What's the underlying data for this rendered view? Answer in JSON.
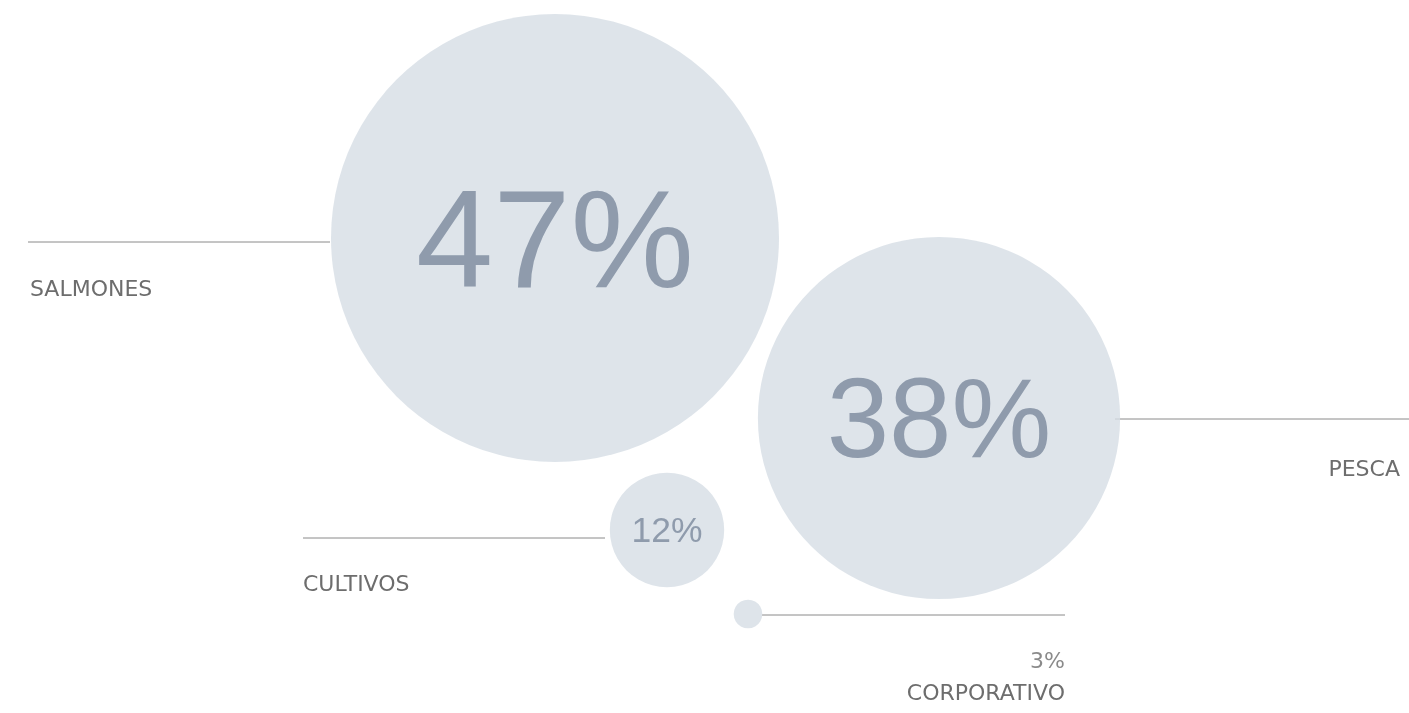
{
  "chart_data": {
    "type": "other",
    "categories": [
      "SALMONES",
      "PESCA",
      "CULTIVOS",
      "CORPORATIVO"
    ],
    "values": [
      47,
      38,
      12,
      3
    ],
    "value_labels": [
      "47%",
      "38%",
      "12%",
      "3%"
    ],
    "color": "#d6dde5"
  }
}
